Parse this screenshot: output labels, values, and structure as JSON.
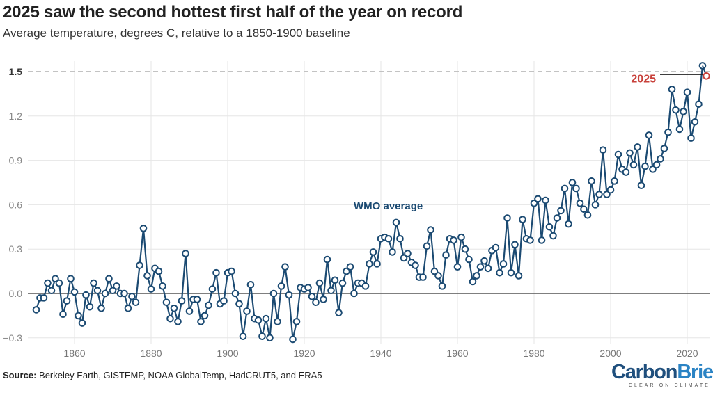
{
  "chart_data": {
    "type": "line",
    "title": "2025 saw the second hottest first half of the year on record",
    "subtitle": "Average temperature, degrees C, relative to a 1850-1900 baseline",
    "xlabel": "",
    "ylabel": "",
    "xlim": [
      1850,
      2025
    ],
    "ylim": [
      -0.3,
      1.5
    ],
    "x_ticks": [
      "1860",
      "1880",
      "1900",
      "1920",
      "1940",
      "1960",
      "1980",
      "2000",
      "2020"
    ],
    "y_ticks": [
      "-0.3",
      "0.0",
      "0.3",
      "0.6",
      "0.9",
      "1.2",
      "1.5"
    ],
    "grid": true,
    "reference_line": 1.5,
    "series": [
      {
        "name": "WMO average",
        "color": "#1b4a72",
        "start_year": 1850,
        "values": [
          -0.11,
          -0.03,
          -0.03,
          0.07,
          0.02,
          0.1,
          0.07,
          -0.14,
          -0.05,
          0.1,
          0.01,
          -0.15,
          -0.2,
          -0.01,
          -0.09,
          0.07,
          0.02,
          -0.1,
          0.0,
          0.1,
          0.02,
          0.05,
          0.0,
          0.0,
          -0.1,
          -0.02,
          -0.06,
          0.19,
          0.44,
          0.12,
          0.03,
          0.17,
          0.15,
          0.05,
          -0.06,
          -0.17,
          -0.1,
          -0.19,
          -0.05,
          0.27,
          -0.12,
          -0.04,
          -0.04,
          -0.19,
          -0.15,
          -0.08,
          0.03,
          0.14,
          -0.07,
          -0.05,
          0.14,
          0.15,
          0.0,
          -0.07,
          -0.29,
          -0.12,
          0.06,
          -0.17,
          -0.18,
          -0.29,
          -0.17,
          -0.3,
          0.0,
          -0.19,
          0.05,
          0.18,
          -0.01,
          -0.31,
          -0.19,
          0.04,
          0.03,
          0.04,
          -0.02,
          -0.06,
          0.07,
          -0.04,
          0.23,
          0.02,
          0.09,
          -0.13,
          0.07,
          0.15,
          0.18,
          0.0,
          0.07,
          0.07,
          0.05,
          0.2,
          0.28,
          0.2,
          0.37,
          0.38,
          0.37,
          0.28,
          0.48,
          0.37,
          0.24,
          0.27,
          0.21,
          0.19,
          0.11,
          0.11,
          0.32,
          0.43,
          0.15,
          0.12,
          0.05,
          0.26,
          0.37,
          0.36,
          0.18,
          0.38,
          0.3,
          0.23,
          0.08,
          0.12,
          0.18,
          0.22,
          0.17,
          0.29,
          0.31,
          0.14,
          0.2,
          0.51,
          0.14,
          0.33,
          0.12,
          0.5,
          0.37,
          0.36,
          0.61,
          0.64,
          0.36,
          0.63,
          0.45,
          0.39,
          0.51,
          0.56,
          0.71,
          0.47,
          0.75,
          0.71,
          0.61,
          0.57,
          0.53,
          0.76,
          0.6,
          0.67,
          0.97,
          0.67,
          0.7,
          0.76,
          0.94,
          0.84,
          0.82,
          0.95,
          0.87,
          0.99,
          0.73,
          0.86,
          1.07,
          0.84,
          0.87,
          0.91,
          0.98,
          1.09,
          1.38,
          1.24,
          1.11,
          1.23,
          1.36,
          1.05,
          1.16,
          1.28,
          1.54
        ]
      }
    ],
    "highlight": {
      "label": "2025",
      "year": 2025,
      "value": 1.47,
      "color": "#c8413b"
    },
    "annotations": [
      "WMO average"
    ]
  },
  "source_label": "Source:",
  "source_text": " Berkeley Earth, GISTEMP, NOAA GlobalTemp, HadCRUT5, and ERA5",
  "logo": {
    "name_a": "Carbon",
    "name_b": "Brief",
    "tagline": "CLEAR ON CLIMATE"
  }
}
